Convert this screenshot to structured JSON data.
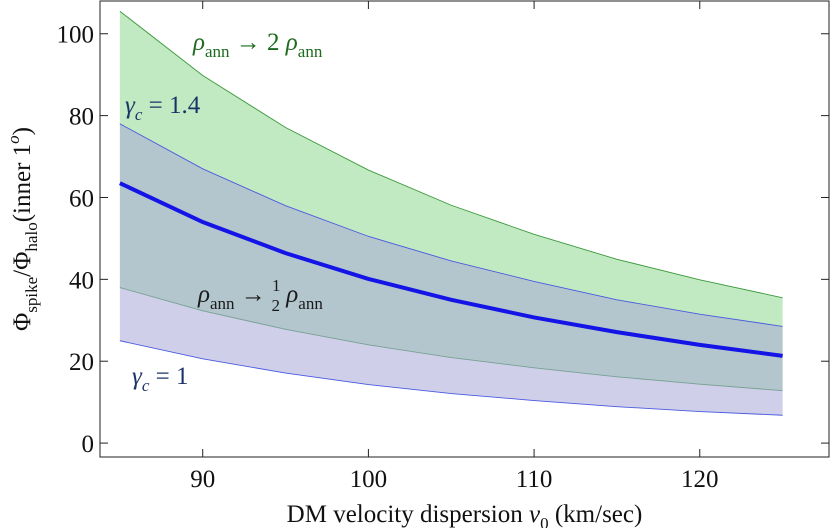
{
  "chart_data": {
    "type": "band",
    "x": [
      85,
      90,
      95,
      100,
      105,
      110,
      115,
      120,
      125
    ],
    "xlim": [
      83.8,
      127.8
    ],
    "ylim": [
      -3.4,
      108
    ],
    "xticks": [
      90,
      100,
      110,
      120
    ],
    "yticks": [
      0,
      20,
      40,
      60,
      80,
      100
    ],
    "x_label": [
      {
        "text": "DM velocity dispersion "
      },
      {
        "text": "v",
        "style": "italic"
      },
      {
        "text": "0",
        "shift": "sub"
      },
      {
        "text": " (km/sec)"
      }
    ],
    "y_label": [
      {
        "text": "Φ"
      },
      {
        "text": "spike",
        "shift": "sub"
      },
      {
        "text": "/Φ"
      },
      {
        "text": "halo",
        "shift": "sub"
      },
      {
        "text": "(inner 1"
      },
      {
        "text": "o",
        "shift": "sup",
        "style": "italic"
      },
      {
        "text": ")"
      }
    ],
    "bands": [
      {
        "color": "#8fd88f",
        "stroke": "#3c9a3c",
        "upper": [
          105.5,
          89.8,
          77.1,
          66.7,
          58.1,
          51.0,
          44.9,
          39.9,
          35.5
        ],
        "lower": [
          38,
          32.3,
          27.8,
          24.0,
          20.9,
          18.4,
          16.2,
          14.4,
          12.8
        ]
      },
      {
        "color": "#a8a8d8",
        "stroke": "#4a5ae0",
        "upper": [
          78,
          67,
          58,
          50.5,
          44.5,
          39.5,
          35,
          31.5,
          28.5
        ],
        "lower": [
          25,
          20.6,
          17.1,
          14.3,
          12.1,
          10.4,
          8.9,
          7.7,
          6.8
        ]
      }
    ],
    "series": [
      {
        "color": "#1414e6",
        "values": [
          63.5,
          54,
          46.4,
          40.1,
          35,
          30.7,
          27.1,
          24,
          21.3
        ]
      }
    ],
    "annotations": [
      {
        "color": "#1e6a1e",
        "parts": [
          {
            "text": "ρ",
            "style": "italic"
          },
          {
            "text": "ann",
            "shift": "sub"
          },
          {
            "text": " → 2 "
          },
          {
            "text": "ρ",
            "style": "italic"
          },
          {
            "text": "ann",
            "shift": "sub"
          }
        ]
      },
      {
        "color": "#1a3368",
        "parts": [
          {
            "text": "γ",
            "style": "italic"
          },
          {
            "text": "c",
            "shift": "sub",
            "style": "italic"
          },
          {
            "text": " = 1.4"
          }
        ]
      },
      {
        "color": "#1a1a1a",
        "parts": [
          {
            "text": "ρ",
            "style": "italic"
          },
          {
            "text": "ann",
            "shift": "sub"
          },
          {
            "text": " → "
          },
          {
            "text": "1",
            "shift": "num"
          },
          {
            "text": "2",
            "shift": "den"
          },
          {
            "text": " "
          },
          {
            "text": "ρ",
            "style": "italic"
          },
          {
            "text": "ann",
            "shift": "sub"
          }
        ]
      },
      {
        "color": "#1a3368",
        "parts": [
          {
            "text": "γ",
            "style": "italic"
          },
          {
            "text": "c",
            "shift": "sub",
            "style": "italic"
          },
          {
            "text": " = 1"
          }
        ]
      }
    ]
  }
}
